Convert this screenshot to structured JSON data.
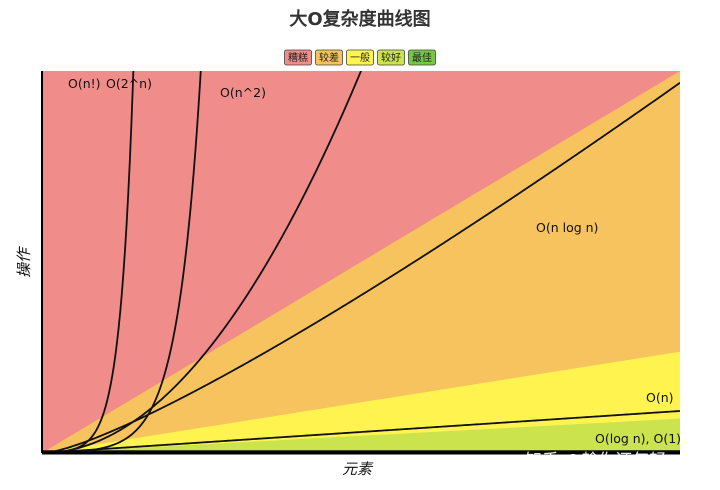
{
  "chart_data": {
    "type": "line",
    "title": "大O复杂度曲线图",
    "xlabel": "元素",
    "ylabel": "操作",
    "xlim": [
      0,
      100
    ],
    "ylim": [
      0,
      1000
    ],
    "legend": {
      "placement": "top-center",
      "items": [
        {
          "label": "糟糕",
          "color": "#f08c89"
        },
        {
          "label": "较差",
          "color": "#f6c35f"
        },
        {
          "label": "一般",
          "color": "#fff350"
        },
        {
          "label": "较好",
          "color": "#cbe34d"
        },
        {
          "label": "最佳",
          "color": "#77c745"
        }
      ]
    },
    "regions": [
      {
        "name": "糟糕",
        "color": "#f08c89",
        "top": [
          [
            0,
            1000
          ],
          [
            100,
            1000
          ]
        ]
      },
      {
        "name": "较差",
        "color": "#f6c35f",
        "top": [
          [
            0,
            0
          ],
          [
            100,
            1000
          ]
        ]
      },
      {
        "name": "一般",
        "color": "#fff350",
        "top": [
          [
            0,
            0
          ],
          [
            100,
            265
          ]
        ]
      },
      {
        "name": "较好",
        "color": "#cbe34d",
        "top": [
          [
            0,
            0
          ],
          [
            100,
            90
          ]
        ]
      },
      {
        "name": "最佳",
        "color": "#77c745",
        "top": [
          [
            0,
            0
          ],
          [
            100,
            8
          ]
        ]
      }
    ],
    "series": [
      {
        "name": "O(log n), O(1)",
        "func": "const",
        "params": [
          5
        ]
      },
      {
        "name": "O(n)",
        "func": "linear",
        "params": [
          1.1
        ]
      },
      {
        "name": "O(n log n)",
        "func": "nlogn",
        "params": [
          1.0
        ]
      },
      {
        "name": "O(n^2)",
        "func": "power",
        "params": [
          0.4,
          2
        ]
      },
      {
        "name": "O(2^n)",
        "func": "exp",
        "params": [
          1.32
        ]
      },
      {
        "name": "O(n!)",
        "func": "exp",
        "params": [
          1.62
        ]
      }
    ]
  },
  "watermark": "知乎 @趁你还年轻"
}
